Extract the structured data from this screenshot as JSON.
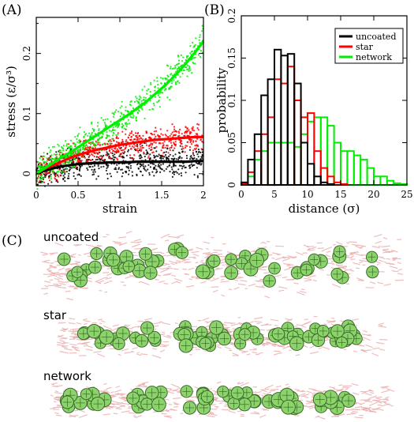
{
  "panels": {
    "a": {
      "label": "(A)"
    },
    "b": {
      "label": "(B)"
    },
    "c": {
      "label": "(C)",
      "rows": [
        {
          "label": "uncoated"
        },
        {
          "label": "star"
        },
        {
          "label": "network"
        }
      ]
    }
  },
  "colors": {
    "uncoated": "#000000",
    "star": "#ff0000",
    "network": "#00ee00",
    "polymer": "#e9a8a8",
    "particle": "#8bd36a",
    "particle_edge": "#3a6a2a"
  },
  "chart_data": [
    {
      "type": "scatter",
      "xlabel": "strain",
      "ylabel": "stress (ε/σ³)",
      "xlim": [
        0,
        2
      ],
      "ylim": [
        -0.02,
        0.26
      ],
      "xticks": [
        "0",
        "0.5",
        "1",
        "1.5",
        "2"
      ],
      "yticks": [
        "0",
        "0.1",
        "0.2"
      ],
      "x": [
        0,
        0.1,
        0.2,
        0.3,
        0.4,
        0.5,
        0.6,
        0.7,
        0.8,
        0.9,
        1.0,
        1.1,
        1.2,
        1.3,
        1.4,
        1.5,
        1.6,
        1.7,
        1.8,
        1.9,
        2.0
      ],
      "series": [
        {
          "key": "uncoated",
          "values": [
            0.0,
            0.005,
            0.009,
            0.012,
            0.014,
            0.016,
            0.017,
            0.018,
            0.018,
            0.019,
            0.019,
            0.019,
            0.02,
            0.02,
            0.02,
            0.02,
            0.02,
            0.02,
            0.02,
            0.021,
            0.021
          ]
        },
        {
          "key": "star",
          "values": [
            0.0,
            0.008,
            0.014,
            0.02,
            0.026,
            0.031,
            0.035,
            0.039,
            0.042,
            0.045,
            0.048,
            0.05,
            0.052,
            0.054,
            0.056,
            0.057,
            0.058,
            0.059,
            0.06,
            0.061,
            0.061
          ]
        },
        {
          "key": "network",
          "values": [
            0.0,
            0.009,
            0.018,
            0.027,
            0.035,
            0.044,
            0.053,
            0.062,
            0.071,
            0.08,
            0.089,
            0.098,
            0.108,
            0.118,
            0.13,
            0.142,
            0.155,
            0.169,
            0.185,
            0.202,
            0.22
          ]
        }
      ]
    },
    {
      "type": "bar",
      "xlabel": "distance (σ)",
      "ylabel": "probability",
      "xlim": [
        0,
        25
      ],
      "ylim": [
        0,
        0.2
      ],
      "xticks": [
        "0",
        "5",
        "10",
        "15",
        "20",
        "25"
      ],
      "yticks": [
        "0",
        "0.05",
        "0.1",
        "0.15",
        "0.2"
      ],
      "bin_width": 1,
      "bin_starts": [
        0,
        1,
        2,
        3,
        4,
        5,
        6,
        7,
        8,
        9,
        10,
        11,
        12,
        13,
        14,
        15,
        16,
        17,
        18,
        19,
        20,
        21,
        22,
        23,
        24
      ],
      "legend_position": "top-right",
      "series": [
        {
          "key": "uncoated",
          "name": "uncoated",
          "values": [
            0.003,
            0.03,
            0.06,
            0.106,
            0.125,
            0.16,
            0.153,
            0.155,
            0.12,
            0.05,
            0.025,
            0.01,
            0.003,
            0.001,
            0,
            0,
            0,
            0,
            0,
            0,
            0,
            0,
            0,
            0,
            0
          ]
        },
        {
          "key": "star",
          "name": "star",
          "values": [
            0.001,
            0.015,
            0.04,
            0.06,
            0.08,
            0.125,
            0.12,
            0.14,
            0.1,
            0.08,
            0.085,
            0.04,
            0.02,
            0.01,
            0.003,
            0.001,
            0,
            0,
            0,
            0,
            0,
            0,
            0,
            0,
            0
          ]
        },
        {
          "key": "network",
          "name": "network",
          "values": [
            0.002,
            0.01,
            0.03,
            0.04,
            0.05,
            0.05,
            0.05,
            0.05,
            0.045,
            0.06,
            0.075,
            0.08,
            0.08,
            0.07,
            0.05,
            0.04,
            0.04,
            0.035,
            0.03,
            0.02,
            0.01,
            0.01,
            0.005,
            0.002,
            0.001
          ]
        }
      ]
    }
  ]
}
